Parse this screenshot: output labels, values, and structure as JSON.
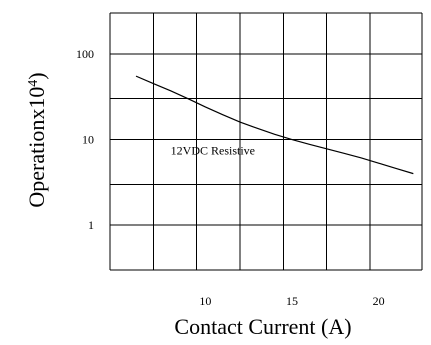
{
  "chart_data": {
    "type": "line",
    "title": "",
    "xlabel": "Contact Current (A)",
    "ylabel_base": "Operationx10",
    "ylabel_exponent": "4",
    "ylabel_suffix": ")",
    "xlim": [
      4.5,
      22.5
    ],
    "ylim": [
      0.3,
      300
    ],
    "y_scale": "log",
    "grid": true,
    "x_gridlines": [
      4.5,
      7,
      9.5,
      12,
      14.5,
      17,
      19.5,
      22.5
    ],
    "x_ticks": [
      {
        "value": 10,
        "label": "10"
      },
      {
        "value": 15,
        "label": "15"
      },
      {
        "value": 20,
        "label": "20"
      }
    ],
    "y_ticks": [
      {
        "value": 100,
        "label": "100"
      },
      {
        "value": 10,
        "label": "10"
      },
      {
        "value": 1,
        "label": "1"
      }
    ],
    "y_gridlines": [
      300,
      100,
      30,
      10,
      3,
      1,
      0.3
    ],
    "series": [
      {
        "name": "",
        "color": "#000000",
        "x": [
          6.0,
          7.0,
          8.0,
          9.0,
          10.0,
          11.0,
          12.0,
          13.0,
          14.0,
          15.0,
          16.0,
          17.0,
          18.0,
          19.0,
          20.0,
          21.0,
          22.0
        ],
        "y": [
          55,
          45,
          37,
          30,
          24,
          19.5,
          16,
          13.5,
          11.5,
          10,
          8.8,
          7.8,
          6.9,
          6.1,
          5.3,
          4.6,
          4.0
        ]
      }
    ],
    "annotations": [
      {
        "text": "12VDC Resistive",
        "x": 8.0,
        "y": 6.7
      }
    ]
  }
}
